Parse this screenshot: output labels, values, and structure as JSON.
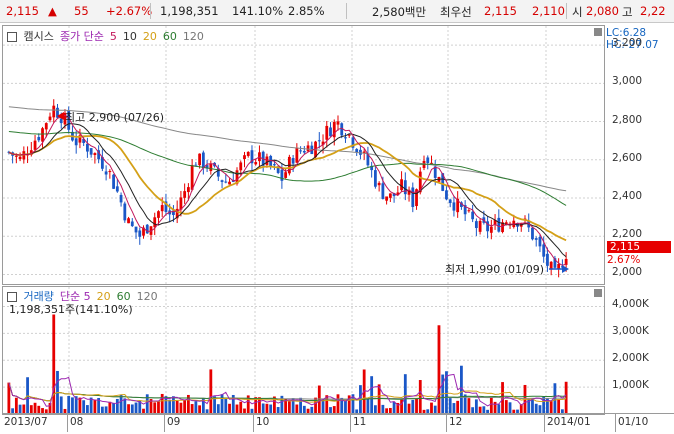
{
  "topbar": {
    "price": "2,115",
    "change_arrow": "▲",
    "change": "55",
    "change_pct": "+2.67%",
    "volume": "1,198,351",
    "volume_ratio": "141.10%",
    "turnover": "2.85%",
    "amount": "2,580백만",
    "bid_label": "최우선",
    "bid1": "2,115",
    "bid2": "2,110",
    "open_label": "시",
    "open": "2,080",
    "high_label": "고",
    "high": "2,22"
  },
  "price_panel": {
    "legend": [
      {
        "label": "캠시스",
        "color": "#333333"
      },
      {
        "label": "종가 단순",
        "color": "#9c27b0"
      },
      {
        "label": "5",
        "color": "#c2185b"
      },
      {
        "label": "10",
        "color": "#333333"
      },
      {
        "label": "20",
        "color": "#d4a017"
      },
      {
        "label": "60",
        "color": "#2e7d32"
      },
      {
        "label": "120",
        "color": "#777777"
      }
    ],
    "lc_label": "LC:6.28",
    "hc_label": "HC:-27.07",
    "yticks": [
      "3,200",
      "3,000",
      "2,800",
      "2,600",
      "2,400",
      "2,200",
      "2,000"
    ],
    "current_price_tag": "2,115",
    "current_pct_tag": "2.67%",
    "high_annotation": "최고 2,900 (07/26)",
    "low_annotation": "최저 1,990 (01/09)"
  },
  "volume_panel": {
    "legend": [
      {
        "label": "거래량",
        "color": "#1565c0"
      },
      {
        "label": "단순 5",
        "color": "#9c27b0"
      },
      {
        "label": "20",
        "color": "#d4a017"
      },
      {
        "label": "60",
        "color": "#2e7d32"
      },
      {
        "label": "120",
        "color": "#777777"
      }
    ],
    "info": "1,198,351주(141.10%)",
    "yticks": [
      "4,000K",
      "3,000K",
      "2,000K",
      "1,000K"
    ]
  },
  "xaxis": {
    "labels": [
      "2013/07",
      "08",
      "09",
      "10",
      "11",
      "12",
      "2014/01",
      "01/10"
    ]
  },
  "chart_data": {
    "type": "candlestick",
    "title": "캠시스",
    "price_ylim": [
      1950,
      3300
    ],
    "volume_ylim": [
      0,
      4500000
    ],
    "periods": 150,
    "key_points": [
      {
        "label": "최고",
        "value": 2900,
        "date": "07/26"
      },
      {
        "label": "최저",
        "value": 1990,
        "date": "01/09"
      },
      {
        "label": "last_close",
        "value": 2115
      }
    ],
    "approx_close_path": [
      2640,
      2600,
      2680,
      2750,
      2880,
      2820,
      2700,
      2680,
      2620,
      2560,
      2420,
      2260,
      2200,
      2280,
      2350,
      2300,
      2420,
      2600,
      2580,
      2520,
      2480,
      2550,
      2620,
      2600,
      2560,
      2500,
      2620,
      2660,
      2680,
      2740,
      2800,
      2740,
      2660,
      2560,
      2440,
      2400,
      2460,
      2380,
      2640,
      2540,
      2420,
      2360,
      2300,
      2240,
      2240,
      2270,
      2300,
      2280,
      2200,
      2080,
      1990,
      2115
    ],
    "ma_lines": [
      "5",
      "10",
      "20",
      "60",
      "120"
    ]
  }
}
